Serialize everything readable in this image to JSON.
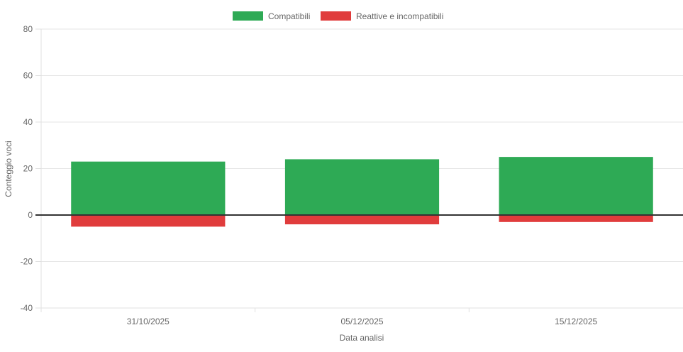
{
  "chart_data": {
    "type": "bar",
    "stacked": true,
    "categories": [
      "31/10/2025",
      "05/12/2025",
      "15/12/2025"
    ],
    "series": [
      {
        "name": "Compatibili",
        "color": "#2eaa55",
        "values": [
          23,
          24,
          25
        ]
      },
      {
        "name": "Reattive e incompatibili",
        "color": "#e03c3c",
        "values": [
          -5,
          -4,
          -3
        ]
      }
    ],
    "xlabel": "Data analisi",
    "ylabel": "Conteggio voci",
    "ylim": [
      -40,
      80
    ],
    "yticks": [
      80,
      60,
      40,
      20,
      0,
      -20,
      -40
    ],
    "grid": true,
    "legend_position": "top-center",
    "zero_line_color": "#333333"
  }
}
